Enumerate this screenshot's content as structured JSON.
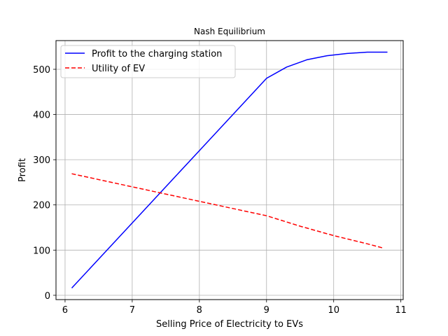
{
  "chart_data": {
    "type": "line",
    "title": "Nash Equilibrium",
    "xlabel": "Selling Price of Electricity to EVs",
    "ylabel": "Profit",
    "xlim": [
      5.865,
      11.035
    ],
    "ylim": [
      -9.5,
      563.5
    ],
    "xticks": [
      6,
      7,
      8,
      9,
      10,
      11
    ],
    "yticks": [
      0,
      100,
      200,
      300,
      400,
      500
    ],
    "grid": true,
    "legend_position": "top-left",
    "series": [
      {
        "name": "Profit to the charging station",
        "color": "#0000ff",
        "style": "solid",
        "x": [
          6.1,
          7.0,
          8.0,
          9.0,
          9.3,
          9.6,
          9.9,
          10.2,
          10.5,
          10.8
        ],
        "y": [
          16,
          160,
          320,
          480,
          505,
          521,
          530,
          535,
          538,
          538
        ]
      },
      {
        "name": "Utility of EV",
        "color": "#ff0000",
        "style": "dashed",
        "x": [
          6.1,
          7.0,
          8.0,
          9.0,
          9.5,
          10.0,
          10.5,
          10.75
        ],
        "y": [
          269,
          240,
          208,
          176,
          153,
          132,
          114,
          104
        ]
      }
    ]
  }
}
